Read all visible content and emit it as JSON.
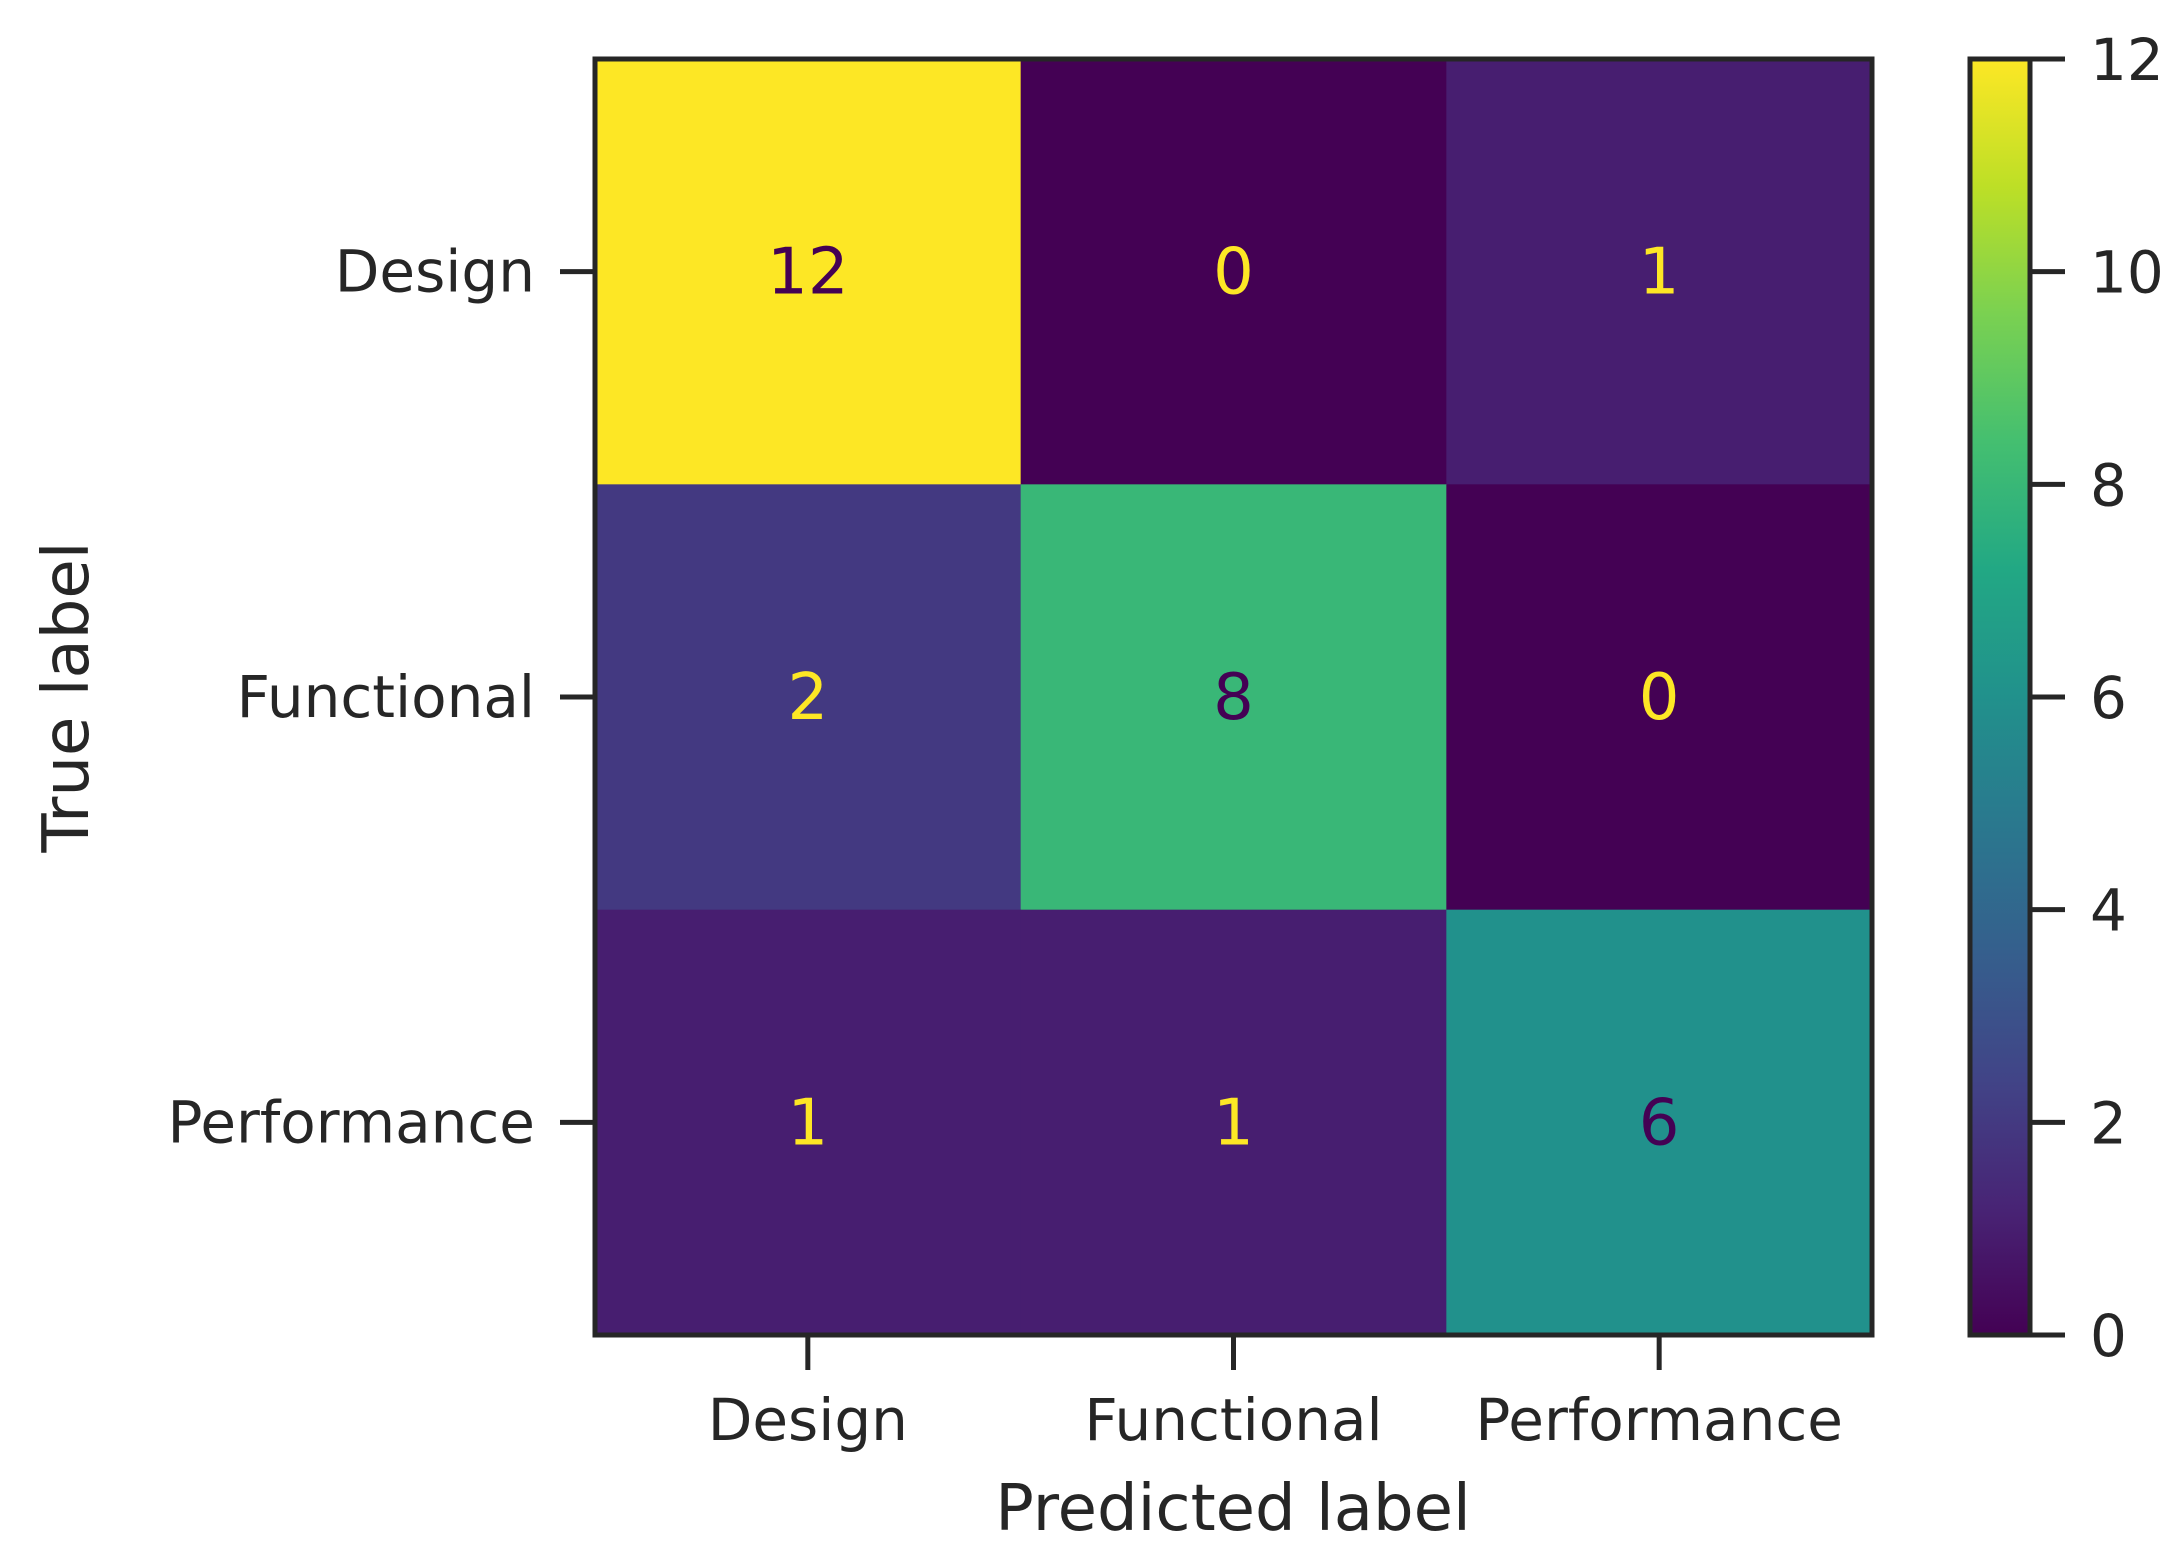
{
  "chart_data": {
    "type": "heatmap",
    "title": "",
    "xlabel": "Predicted label",
    "ylabel": "True label",
    "x_categories": [
      "Design",
      "Functional",
      "Performance"
    ],
    "y_categories": [
      "Design",
      "Functional",
      "Performance"
    ],
    "values": [
      [
        12,
        0,
        1
      ],
      [
        2,
        8,
        0
      ],
      [
        1,
        1,
        6
      ]
    ],
    "value_labels": [
      [
        "12",
        "0",
        "1"
      ],
      [
        "2",
        "8",
        "0"
      ],
      [
        "1",
        "1",
        "6"
      ]
    ],
    "colormap": "viridis",
    "colorbar": {
      "range": [
        0,
        12
      ],
      "ticks": [
        0,
        2,
        4,
        6,
        8,
        10,
        12
      ],
      "tick_labels": [
        "0",
        "2",
        "4",
        "6",
        "8",
        "10",
        "12"
      ]
    },
    "text_colors": {
      "on_dark": "#fde725",
      "on_light": "#440154"
    },
    "grid": false
  }
}
